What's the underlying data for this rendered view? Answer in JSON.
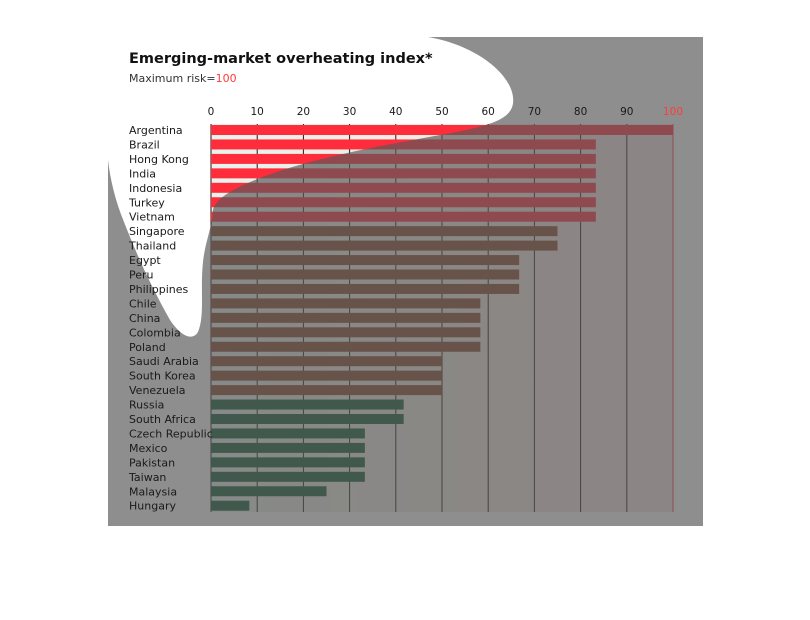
{
  "chart_data": {
    "type": "bar",
    "orientation": "horizontal",
    "title": "Emerging-market overheating index*",
    "subtitle": {
      "prefix": "Maximum risk=",
      "value": "100"
    },
    "xlim": [
      0,
      100
    ],
    "xticks": [
      0,
      10,
      20,
      30,
      40,
      50,
      60,
      70,
      80,
      90,
      100
    ],
    "categories": [
      "Argentina",
      "Brazil",
      "Hong Kong",
      "India",
      "Indonesia",
      "Turkey",
      "Vietnam",
      "Singapore",
      "Thailand",
      "Egypt",
      "Peru",
      "Philippines",
      "Chile",
      "China",
      "Colombia",
      "Poland",
      "Saudi Arabia",
      "South Korea",
      "Venezuela",
      "Russia",
      "South Africa",
      "Czech Republic",
      "Mexico",
      "Pakistan",
      "Taiwan",
      "Malaysia",
      "Hungary"
    ],
    "values": [
      100,
      83.3,
      83.3,
      83.3,
      83.3,
      83.3,
      83.3,
      75,
      75,
      66.7,
      66.7,
      66.7,
      58.3,
      58.3,
      58.3,
      58.3,
      50,
      50,
      50,
      41.7,
      41.7,
      33.3,
      33.3,
      33.3,
      33.3,
      25,
      8.3
    ],
    "colors": {
      "high": "#ff2d3c",
      "medium": "#8a4a2c",
      "low": "#0f5a34",
      "max_accent": "#ff3b3b"
    },
    "grid": true
  }
}
